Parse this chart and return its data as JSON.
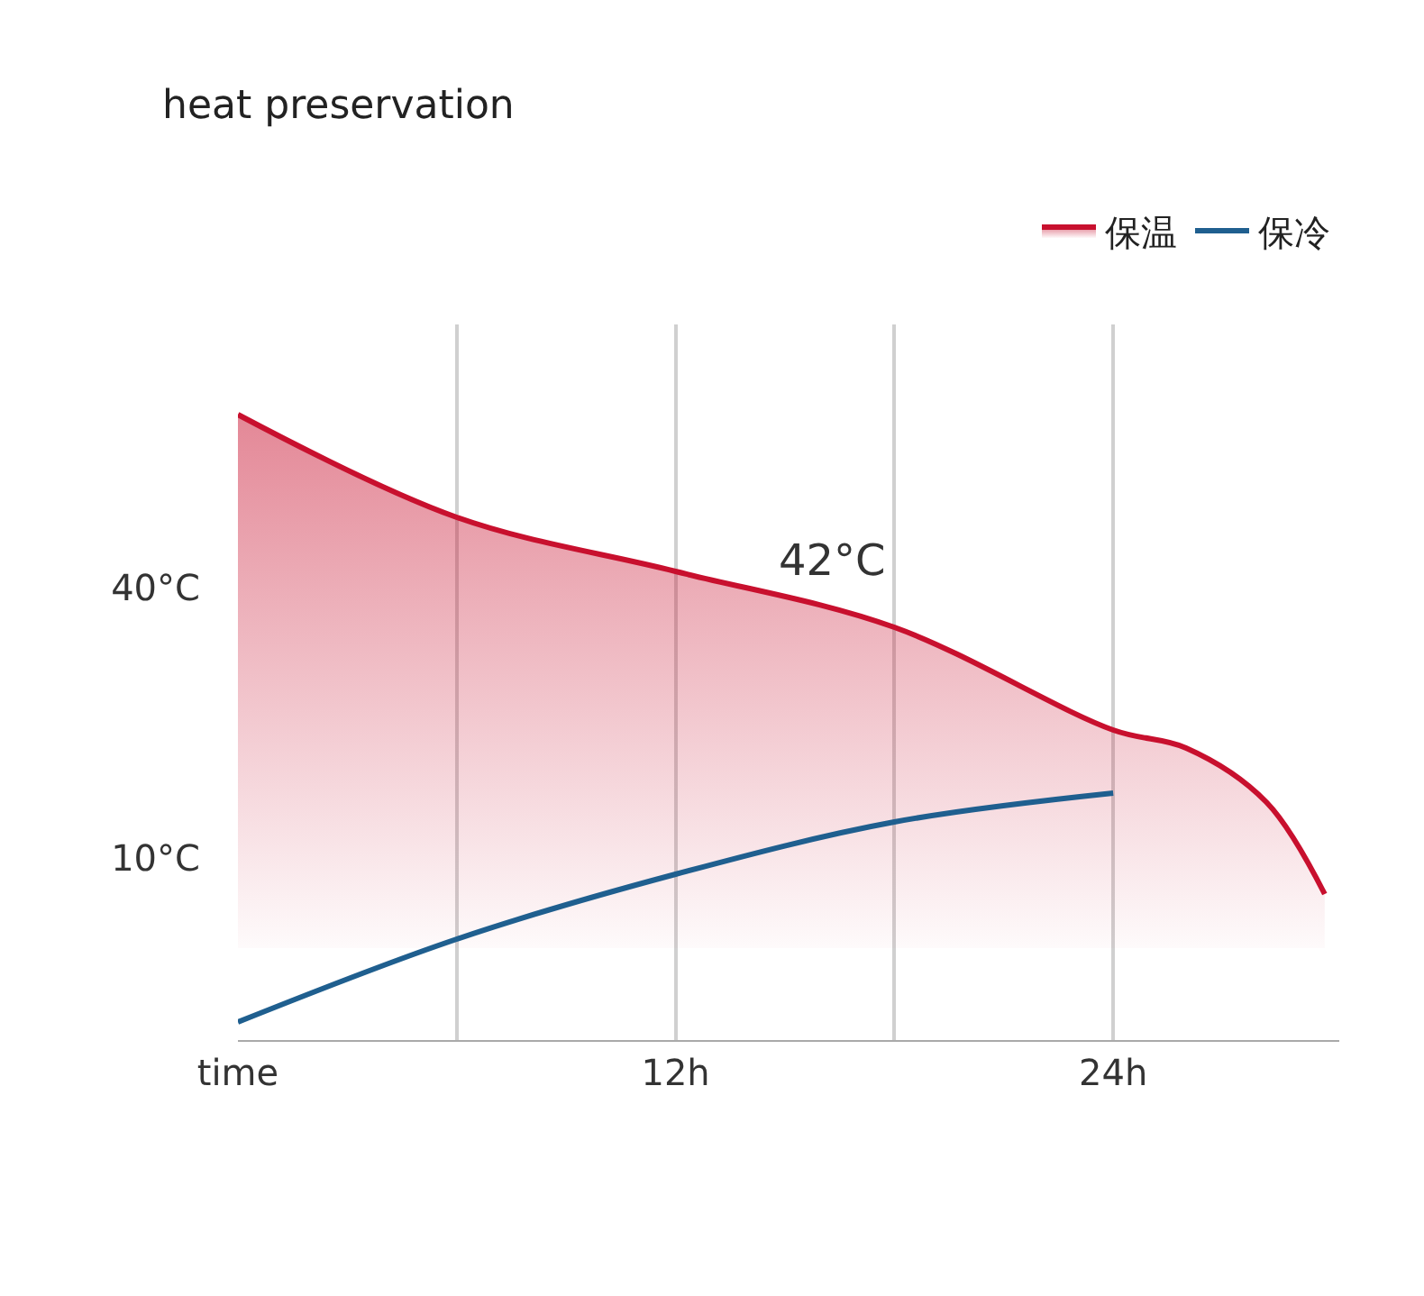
{
  "chart_data": {
    "type": "line",
    "title": "heat preservation",
    "x": [
      0,
      6,
      12,
      18,
      24,
      26,
      28.2,
      29.8
    ],
    "series": [
      {
        "name": "保温",
        "type": "area",
        "color": "#c8102e",
        "values": [
          59.2,
          47.8,
          41.8,
          35.6,
          24.2,
          22.2,
          16.2,
          6
        ]
      },
      {
        "name": "保冷",
        "type": "line",
        "color": "#1f5f8f",
        "x": [
          0,
          6,
          12,
          18,
          24
        ],
        "values": [
          -8.2,
          1,
          8.2,
          14,
          17.2
        ]
      }
    ],
    "xlim": [
      0,
      30.2
    ],
    "xticks": [
      {
        "value": 0,
        "label": "time"
      },
      {
        "value": 6,
        "label": null
      },
      {
        "value": 12,
        "label": "12h"
      },
      {
        "value": 18,
        "label": null
      },
      {
        "value": 24,
        "label": "24h"
      }
    ],
    "ylim": [
      -10.2,
      69.2
    ],
    "yticks": [
      {
        "value": 10,
        "label": "10°C"
      },
      {
        "value": 40,
        "label": "40°C"
      }
    ],
    "grid": "x",
    "legend": "top right",
    "annotations": [
      "42°C"
    ]
  }
}
